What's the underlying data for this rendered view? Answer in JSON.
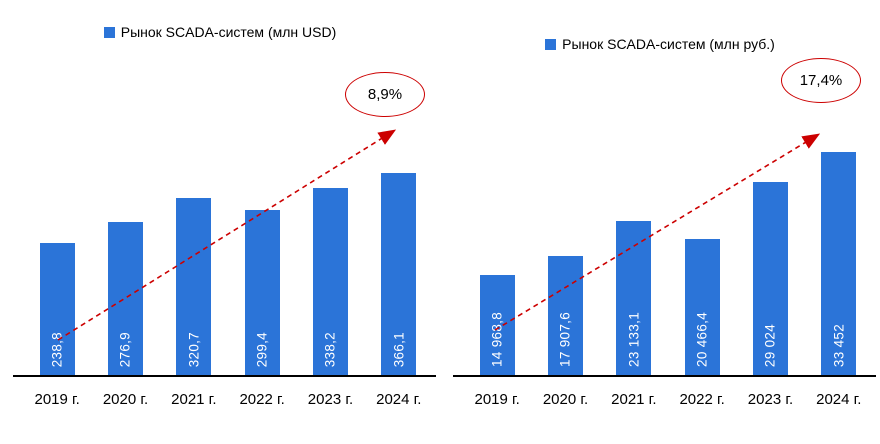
{
  "colors": {
    "bar_fill": "#2b74d8",
    "trend_line": "#cc0000",
    "bar_value_text": "#ffffff"
  },
  "chart_data": [
    {
      "type": "bar",
      "legend": "Рынок SCADA-систем (млн USD)",
      "categories": [
        "2019 г.",
        "2020 г.",
        "2021 г.",
        "2022 г.",
        "2023 г.",
        "2024 г."
      ],
      "values": [
        238.8,
        276.9,
        320.7,
        299.4,
        338.2,
        366.1
      ],
      "value_labels": [
        "238,8",
        "276,9",
        "320,7",
        "299,4",
        "338,2",
        "366,1"
      ],
      "growth_label": "8,9%",
      "legend_position": "top-center",
      "grid": false,
      "trend": "dashed red arrow rising left-to-right"
    },
    {
      "type": "bar",
      "legend": "Рынок SCADA-систем (млн руб.)",
      "categories": [
        "2019 г.",
        "2020 г.",
        "2021 г.",
        "2022 г.",
        "2023 г.",
        "2024 г."
      ],
      "values": [
        14968.8,
        17907.6,
        23133.1,
        20466.4,
        29024,
        33452
      ],
      "value_labels": [
        "14 968,8",
        "17 907,6",
        "23 133,1",
        "20 466,4",
        "29 024",
        "33 452"
      ],
      "growth_label": "17,4%",
      "legend_position": "top-center",
      "grid": false,
      "trend": "dashed red arrow rising left-to-right"
    }
  ]
}
